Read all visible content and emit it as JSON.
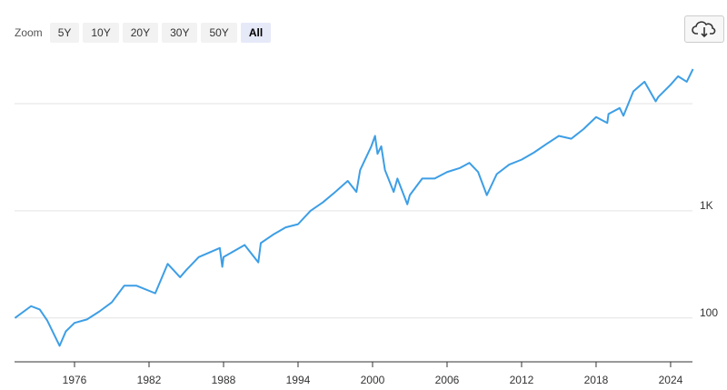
{
  "ui": {
    "zoom_label": "Zoom",
    "zoom_buttons": [
      "5Y",
      "10Y",
      "20Y",
      "30Y",
      "50Y",
      "All"
    ],
    "active_button": 5
  },
  "chart_data": {
    "type": "line",
    "color": "#3d9ee5",
    "log_scale": true,
    "x": [
      1971.2,
      1972.5,
      1973.2,
      1973.8,
      1974.8,
      1975.3,
      1976,
      1977,
      1978,
      1979,
      1980,
      1981,
      1982.5,
      1983.5,
      1984.5,
      1985,
      1986,
      1987.7,
      1987.9,
      1988,
      1989.7,
      1990.8,
      1991,
      1992,
      1993,
      1994,
      1995,
      1996,
      1997,
      1998,
      1998.7,
      1999,
      1999.9,
      2000.2,
      2000.4,
      2000.7,
      2001,
      2001.7,
      2002,
      2002.8,
      2003,
      2004,
      2005,
      2006,
      2007,
      2007.8,
      2008.5,
      2009.2,
      2010,
      2011,
      2012,
      2013,
      2014,
      2015,
      2016,
      2017,
      2018,
      2018.9,
      2019,
      2019.9,
      2020.2,
      2021,
      2021.9,
      2022.8,
      2023,
      2024,
      2024.6,
      2025.3,
      2025.8
    ],
    "values": [
      100,
      129,
      120,
      95,
      55,
      75,
      90,
      97,
      115,
      140,
      200,
      200,
      170,
      320,
      240,
      280,
      370,
      450,
      300,
      370,
      480,
      330,
      500,
      600,
      700,
      750,
      1000,
      1200,
      1500,
      1900,
      1500,
      2400,
      4000,
      5000,
      3400,
      4000,
      2400,
      1500,
      2000,
      1150,
      1400,
      2000,
      2000,
      2300,
      2500,
      2800,
      2300,
      1400,
      2200,
      2700,
      3000,
      3500,
      4200,
      5000,
      4700,
      5800,
      7500,
      6600,
      8000,
      9100,
      7700,
      13000,
      16000,
      10500,
      11500,
      15000,
      18000,
      16000,
      21000
    ],
    "xlim": [
      1971.17,
      2025.76
    ],
    "xticks": [
      1976,
      1982,
      1988,
      1994,
      2000,
      2006,
      2012,
      2018,
      2024
    ],
    "ylim": [
      39,
      28700
    ],
    "yticks": [
      100,
      {
        "value": 1000,
        "label": "1K"
      }
    ],
    "ygrid": [
      100,
      1000,
      10000
    ]
  }
}
